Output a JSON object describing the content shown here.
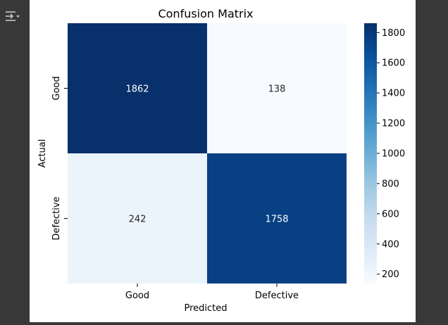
{
  "output_icon": "output-collapse-icon",
  "chart_data": {
    "type": "heatmap",
    "title": "Confusion Matrix",
    "xlabel": "Predicted",
    "ylabel": "Actual",
    "x_categories": [
      "Good",
      "Defective"
    ],
    "y_categories": [
      "Good",
      "Defective"
    ],
    "values": [
      [
        1862,
        138
      ],
      [
        242,
        1758
      ]
    ],
    "colormap": "Blues",
    "color_range": [
      138,
      1862
    ],
    "colorbar_ticks": [
      200,
      400,
      600,
      800,
      1000,
      1200,
      1400,
      1600,
      1800
    ],
    "annotations": true,
    "colors": {
      "low": "#f7fbff",
      "high": "#08306b",
      "annotation_dark": "#262626",
      "annotation_light": "#ffffff"
    }
  }
}
